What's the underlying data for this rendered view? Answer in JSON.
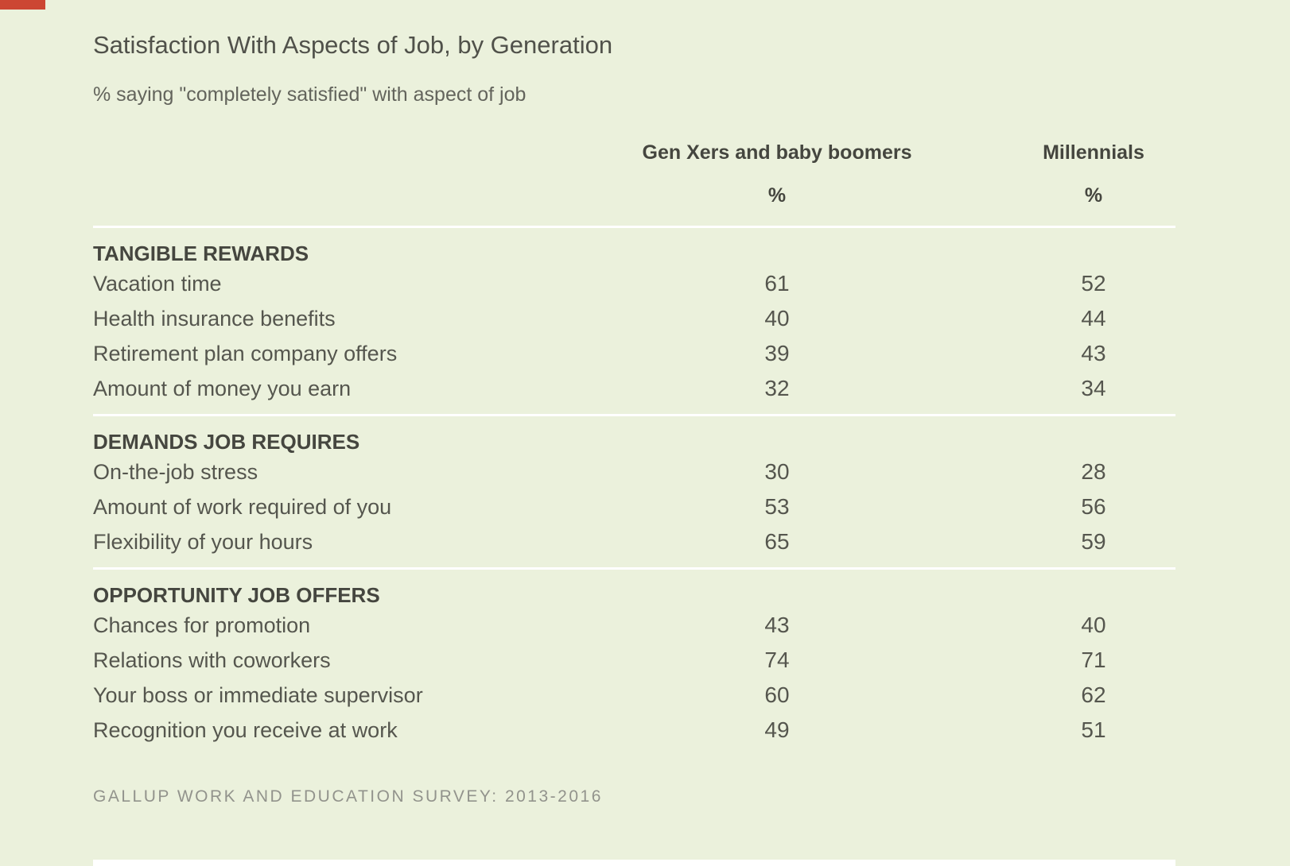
{
  "page": {
    "background_color": "#ebf1dc",
    "accent_red": "#cc4633",
    "rule_color": "#ffffff"
  },
  "chart_data": {
    "type": "table",
    "title": "Satisfaction With Aspects of Job, by Generation",
    "subtitle": "% saying \"completely satisfied\" with aspect of job",
    "columns": [
      "Gen Xers and baby boomers",
      "Millennials"
    ],
    "unit": "%",
    "sections": [
      {
        "header": "TANGIBLE REWARDS",
        "rows": [
          {
            "label": "Vacation time",
            "values": [
              61,
              52
            ]
          },
          {
            "label": "Health insurance benefits",
            "values": [
              40,
              44
            ]
          },
          {
            "label": "Retirement plan company offers",
            "values": [
              39,
              43
            ]
          },
          {
            "label": "Amount of money you earn",
            "values": [
              32,
              34
            ]
          }
        ]
      },
      {
        "header": "DEMANDS JOB REQUIRES",
        "rows": [
          {
            "label": "On-the-job stress",
            "values": [
              30,
              28
            ]
          },
          {
            "label": "Amount of work required of you",
            "values": [
              53,
              56
            ]
          },
          {
            "label": "Flexibility of your hours",
            "values": [
              65,
              59
            ]
          }
        ]
      },
      {
        "header": "OPPORTUNITY JOB OFFERS",
        "rows": [
          {
            "label": "Chances for promotion",
            "values": [
              43,
              40
            ]
          },
          {
            "label": "Relations with coworkers",
            "values": [
              74,
              71
            ]
          },
          {
            "label": "Your boss or immediate supervisor",
            "values": [
              60,
              62
            ]
          },
          {
            "label": "Recognition you receive at work",
            "values": [
              49,
              51
            ]
          }
        ]
      }
    ],
    "source": "GALLUP WORK AND EDUCATION SURVEY: 2013-2016",
    "layout": {
      "grid": "off",
      "legend": "none",
      "value_columns_centered": true
    }
  }
}
